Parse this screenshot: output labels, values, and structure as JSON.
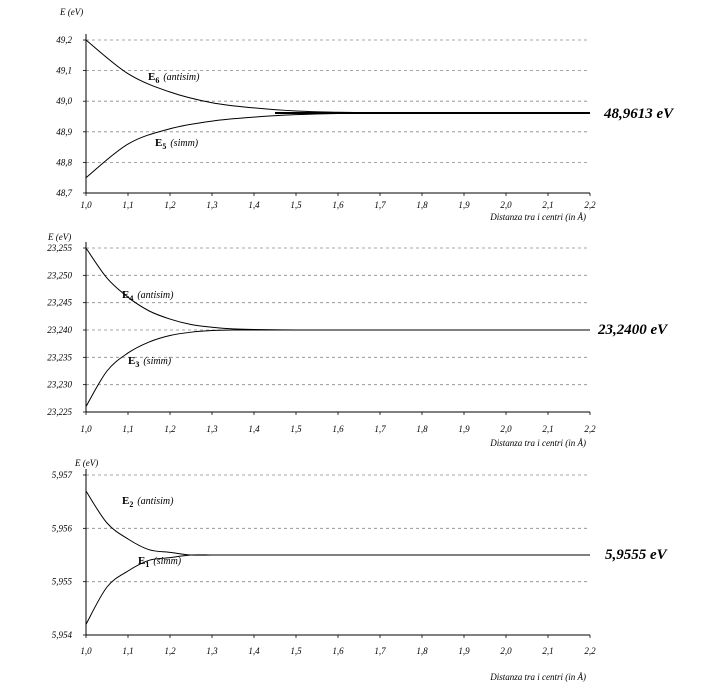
{
  "chart_data": [
    {
      "type": "line",
      "ylabel": "E  (eV)",
      "xlabel": "Distanza tra i centri (in Å)",
      "xlim": [
        1.0,
        2.2
      ],
      "ylim": [
        48.7,
        49.2
      ],
      "xticks": [
        "1,0",
        "1,1",
        "1,2",
        "1,3",
        "1,4",
        "1,5",
        "1,6",
        "1,7",
        "1,8",
        "1,9",
        "2,0",
        "2,1",
        "2,2"
      ],
      "yticks": [
        "49,2",
        "49,1",
        "49,0",
        "48,9",
        "48,8",
        "48,7"
      ],
      "limit_value": 48.9613,
      "limit_label": "48,9613 eV",
      "series": [
        {
          "name": "E6 (antisim)",
          "label_main": "E",
          "label_sub": "6",
          "label_note": "(antisim)",
          "x": [
            1.0,
            1.1,
            1.2,
            1.3,
            1.4,
            1.5,
            1.6,
            1.7,
            1.8,
            1.9,
            2.0,
            2.1,
            2.2
          ],
          "y": [
            49.2,
            49.09,
            49.03,
            48.995,
            48.978,
            48.968,
            48.964,
            48.962,
            48.9613,
            48.9613,
            48.9613,
            48.9613,
            48.9613
          ]
        },
        {
          "name": "E5 (simm)",
          "label_main": "E",
          "label_sub": "5",
          "label_note": "(simm)",
          "x": [
            1.0,
            1.1,
            1.2,
            1.3,
            1.4,
            1.5,
            1.6,
            1.7,
            1.8,
            1.9,
            2.0,
            2.1,
            2.2
          ],
          "y": [
            48.75,
            48.86,
            48.91,
            48.935,
            48.948,
            48.956,
            48.96,
            48.961,
            48.9613,
            48.9613,
            48.9613,
            48.9613,
            48.9613
          ]
        }
      ]
    },
    {
      "type": "line",
      "ylabel": "E (eV)",
      "xlabel": "Distanza tra i centri (in Å)",
      "xlim": [
        1.0,
        2.2
      ],
      "ylim": [
        23.225,
        23.255
      ],
      "xticks": [
        "1,0",
        "1,1",
        "1,2",
        "1,3",
        "1,4",
        "1,5",
        "1,6",
        "1,7",
        "1,8",
        "1,9",
        "2,0",
        "2,1",
        "2,2"
      ],
      "yticks": [
        "23,255",
        "23,250",
        "23,245",
        "23,240",
        "23,235",
        "23,230",
        "23,225"
      ],
      "limit_value": 23.24,
      "limit_label": "23,2400 eV",
      "series": [
        {
          "name": "E4 (antisim)",
          "label_main": "E",
          "label_sub": "4",
          "label_note": "(antisim)",
          "x": [
            1.0,
            1.05,
            1.1,
            1.15,
            1.2,
            1.25,
            1.3,
            1.35,
            1.4,
            1.5,
            1.6,
            2.2
          ],
          "y": [
            23.255,
            23.2495,
            23.246,
            23.2435,
            23.242,
            23.241,
            23.2405,
            23.2402,
            23.2401,
            23.24,
            23.24,
            23.24
          ]
        },
        {
          "name": "E3 (simm)",
          "label_main": "E",
          "label_sub": "3",
          "label_note": "(simm)",
          "x": [
            1.0,
            1.05,
            1.1,
            1.15,
            1.2,
            1.25,
            1.3,
            1.35,
            1.4,
            1.5,
            1.6,
            2.2
          ],
          "y": [
            23.226,
            23.2325,
            23.2358,
            23.2378,
            23.239,
            23.2396,
            23.2399,
            23.24,
            23.24,
            23.24,
            23.24,
            23.24
          ]
        }
      ]
    },
    {
      "type": "line",
      "ylabel": "E (eV)",
      "xlabel": "Distanza tra i centri (in Å)",
      "xlim": [
        1.0,
        2.2
      ],
      "ylim": [
        5.954,
        5.957
      ],
      "xticks": [
        "1,0",
        "1,1",
        "1,2",
        "1,3",
        "1,4",
        "1,5",
        "1,6",
        "1,7",
        "1,8",
        "1,9",
        "2,0",
        "2,1",
        "2,2"
      ],
      "yticks": [
        "5,957",
        "5,956",
        "5,955",
        "5,954"
      ],
      "limit_value": 5.9555,
      "limit_label": "5,9555 eV",
      "series": [
        {
          "name": "E2 (antisim)",
          "label_main": "E",
          "label_sub": "2",
          "label_note": "(antisim)",
          "x": [
            1.0,
            1.05,
            1.1,
            1.15,
            1.2,
            1.25,
            1.3,
            1.35,
            2.2
          ],
          "y": [
            5.9567,
            5.9561,
            5.9558,
            5.9556,
            5.95555,
            5.9555,
            5.9555,
            5.9555,
            5.9555
          ]
        },
        {
          "name": "E1 (simm)",
          "label_main": "E",
          "label_sub": "1",
          "label_note": "(simm)",
          "x": [
            1.0,
            1.05,
            1.1,
            1.15,
            1.2,
            1.25,
            1.3,
            1.35,
            2.2
          ],
          "y": [
            5.9542,
            5.9549,
            5.9552,
            5.9554,
            5.95545,
            5.9555,
            5.9555,
            5.9555,
            5.9555
          ]
        }
      ]
    }
  ]
}
